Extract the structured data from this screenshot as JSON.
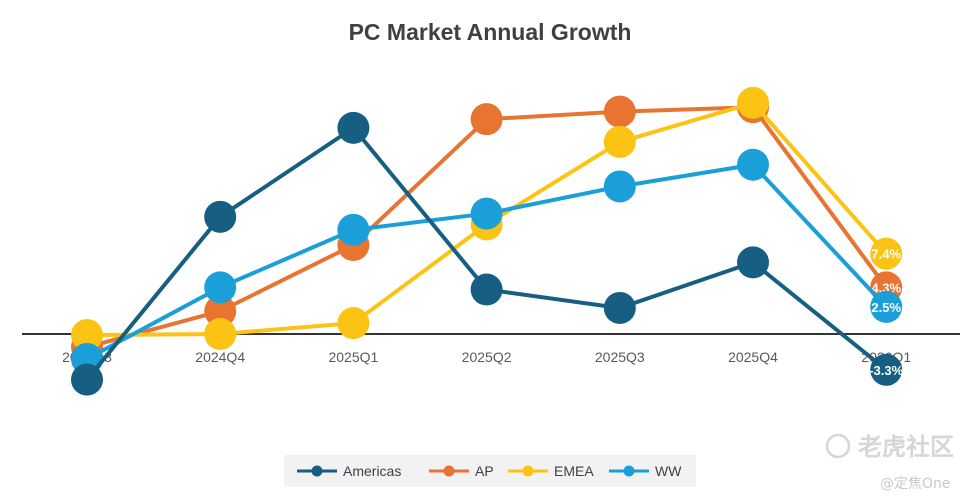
{
  "chart_data": {
    "type": "line",
    "title": "PC Market Annual Growth",
    "xlabel": "",
    "ylabel": "",
    "categories": [
      "2024Q3",
      "2024Q4",
      "2025Q1",
      "2025Q2",
      "2025Q3",
      "2025Q4",
      "2026Q1"
    ],
    "ylim": [
      -5,
      22
    ],
    "grid": false,
    "legend_position": "bottom",
    "series": [
      {
        "name": "Americas",
        "color": "#175F82",
        "values": [
          -4.2,
          10.8,
          19.0,
          4.1,
          2.4,
          6.6,
          -3.3
        ],
        "end_label": "-3.3%"
      },
      {
        "name": "AP",
        "color": "#E87432",
        "values": [
          -1.2,
          2.1,
          8.2,
          19.8,
          20.5,
          20.9,
          4.3
        ],
        "end_label": "4.3%"
      },
      {
        "name": "EMEA",
        "color": "#FBC313",
        "values": [
          -0.1,
          0.0,
          1.0,
          10.1,
          17.7,
          21.3,
          7.4
        ],
        "end_label": "7.4%"
      },
      {
        "name": "WW",
        "color": "#1A9FD8",
        "values": [
          -2.3,
          4.3,
          9.6,
          11.1,
          13.6,
          15.6,
          2.5
        ],
        "end_label": "2.5%"
      }
    ]
  },
  "watermark": {
    "main": "老虎社区",
    "sub": "@定焦One"
  }
}
